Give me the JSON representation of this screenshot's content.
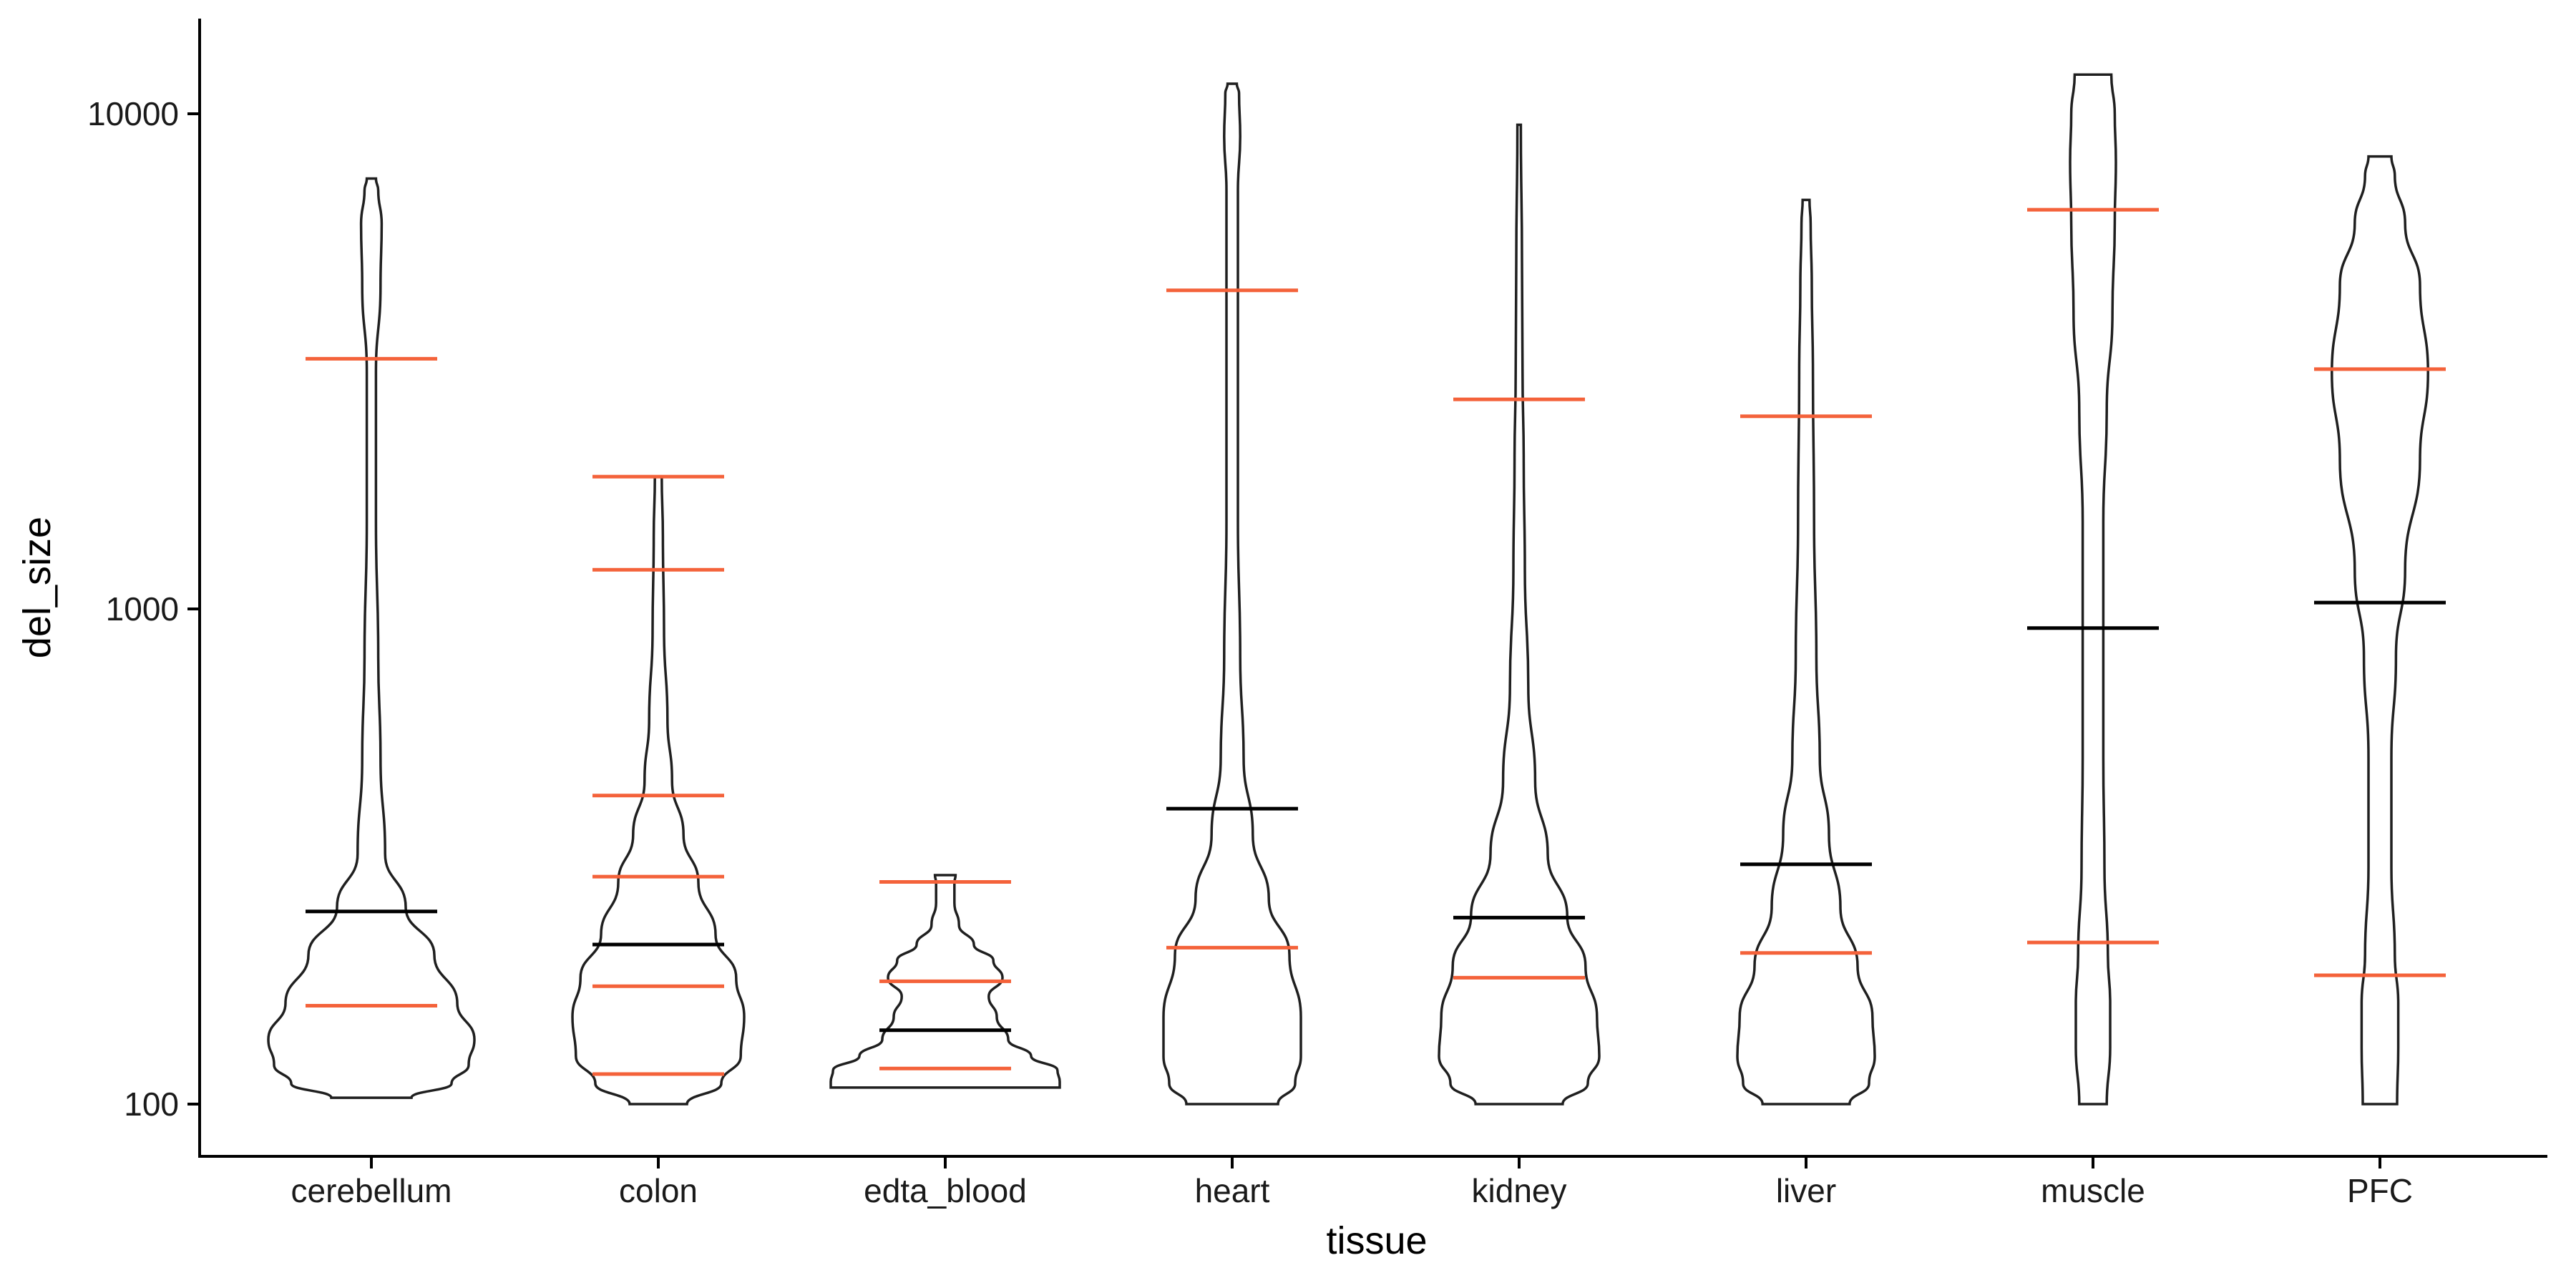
{
  "chart_data": {
    "type": "violin",
    "xlabel": "tissue",
    "ylabel": "del_size",
    "y_scale": "log10",
    "ylim": [
      85,
      15000
    ],
    "y_ticks": [
      {
        "value": 100,
        "label": "100"
      },
      {
        "value": 1000,
        "label": "1000"
      },
      {
        "value": 10000,
        "label": "10000"
      }
    ],
    "categories": [
      "cerebellum",
      "colon",
      "edta_blood",
      "heart",
      "kidney",
      "liver",
      "muscle",
      "PFC"
    ],
    "colors": {
      "violin_outline": "#1f1f1f",
      "median": "#000000",
      "quantile": "#f4623a"
    },
    "series": [
      {
        "category": "cerebellum",
        "min": 103,
        "max": 7400,
        "median": 245,
        "quantiles": [
          158,
          3200
        ],
        "profile": [
          [
            103,
            0.35
          ],
          [
            110,
            0.7
          ],
          [
            120,
            0.85
          ],
          [
            135,
            0.9
          ],
          [
            160,
            0.75
          ],
          [
            200,
            0.55
          ],
          [
            250,
            0.3
          ],
          [
            320,
            0.12
          ],
          [
            500,
            0.08
          ],
          [
            800,
            0.06
          ],
          [
            1500,
            0.04
          ],
          [
            3000,
            0.04
          ],
          [
            4500,
            0.08
          ],
          [
            6000,
            0.09
          ],
          [
            7000,
            0.06
          ],
          [
            7400,
            0.04
          ]
        ]
      },
      {
        "category": "colon",
        "min": 100,
        "max": 1850,
        "median": 210,
        "quantiles": [
          115,
          173,
          288,
          420,
          1200,
          1850
        ],
        "profile": [
          [
            100,
            0.25
          ],
          [
            110,
            0.55
          ],
          [
            125,
            0.72
          ],
          [
            150,
            0.75
          ],
          [
            180,
            0.68
          ],
          [
            220,
            0.5
          ],
          [
            280,
            0.35
          ],
          [
            350,
            0.22
          ],
          [
            450,
            0.12
          ],
          [
            600,
            0.08
          ],
          [
            900,
            0.05
          ],
          [
            1400,
            0.04
          ],
          [
            1850,
            0.03
          ]
        ]
      },
      {
        "category": "edta_blood",
        "min": 108,
        "max": 290,
        "median": 141,
        "quantiles": [
          118,
          177,
          281
        ],
        "profile": [
          [
            108,
            1.0
          ],
          [
            111,
            1.0
          ],
          [
            117,
            0.98
          ],
          [
            125,
            0.75
          ],
          [
            135,
            0.55
          ],
          [
            150,
            0.45
          ],
          [
            165,
            0.38
          ],
          [
            180,
            0.5
          ],
          [
            195,
            0.42
          ],
          [
            210,
            0.25
          ],
          [
            230,
            0.12
          ],
          [
            255,
            0.08
          ],
          [
            280,
            0.08
          ],
          [
            290,
            0.09
          ]
        ]
      },
      {
        "category": "heart",
        "min": 100,
        "max": 11500,
        "median": 395,
        "quantiles": [
          207,
          4400
        ],
        "profile": [
          [
            100,
            0.4
          ],
          [
            110,
            0.55
          ],
          [
            125,
            0.6
          ],
          [
            150,
            0.6
          ],
          [
            200,
            0.5
          ],
          [
            260,
            0.32
          ],
          [
            350,
            0.18
          ],
          [
            500,
            0.1
          ],
          [
            800,
            0.07
          ],
          [
            1500,
            0.05
          ],
          [
            3000,
            0.05
          ],
          [
            5000,
            0.05
          ],
          [
            7000,
            0.05
          ],
          [
            9000,
            0.07
          ],
          [
            11000,
            0.06
          ],
          [
            11500,
            0.04
          ]
        ]
      },
      {
        "category": "kidney",
        "min": 100,
        "max": 9500,
        "median": 238,
        "quantiles": [
          180,
          2650
        ],
        "profile": [
          [
            100,
            0.38
          ],
          [
            110,
            0.6
          ],
          [
            125,
            0.7
          ],
          [
            150,
            0.68
          ],
          [
            190,
            0.58
          ],
          [
            240,
            0.42
          ],
          [
            320,
            0.25
          ],
          [
            450,
            0.14
          ],
          [
            700,
            0.08
          ],
          [
            1200,
            0.05
          ],
          [
            2000,
            0.04
          ],
          [
            3000,
            0.03
          ],
          [
            5000,
            0.025
          ],
          [
            9500,
            0.015
          ]
        ]
      },
      {
        "category": "liver",
        "min": 100,
        "max": 6700,
        "median": 305,
        "quantiles": [
          202,
          2450
        ],
        "profile": [
          [
            100,
            0.38
          ],
          [
            110,
            0.55
          ],
          [
            125,
            0.6
          ],
          [
            150,
            0.58
          ],
          [
            190,
            0.45
          ],
          [
            250,
            0.3
          ],
          [
            350,
            0.2
          ],
          [
            500,
            0.12
          ],
          [
            800,
            0.09
          ],
          [
            1500,
            0.07
          ],
          [
            3000,
            0.06
          ],
          [
            4500,
            0.05
          ],
          [
            6000,
            0.04
          ],
          [
            6700,
            0.03
          ]
        ]
      },
      {
        "category": "muscle",
        "min": 100,
        "max": 12000,
        "median": 915,
        "quantiles": [
          212,
          6400
        ],
        "profile": [
          [
            100,
            0.12
          ],
          [
            130,
            0.15
          ],
          [
            160,
            0.15
          ],
          [
            200,
            0.13
          ],
          [
            300,
            0.1
          ],
          [
            500,
            0.09
          ],
          [
            900,
            0.09
          ],
          [
            1500,
            0.09
          ],
          [
            2500,
            0.12
          ],
          [
            4000,
            0.17
          ],
          [
            6000,
            0.19
          ],
          [
            8000,
            0.2
          ],
          [
            10000,
            0.19
          ],
          [
            12000,
            0.16
          ]
        ]
      },
      {
        "category": "PFC",
        "min": 100,
        "max": 8200,
        "median": 1030,
        "quantiles": [
          182,
          3050
        ],
        "profile": [
          [
            100,
            0.15
          ],
          [
            130,
            0.16
          ],
          [
            160,
            0.16
          ],
          [
            200,
            0.13
          ],
          [
            300,
            0.1
          ],
          [
            500,
            0.1
          ],
          [
            800,
            0.14
          ],
          [
            1200,
            0.22
          ],
          [
            2000,
            0.35
          ],
          [
            3000,
            0.42
          ],
          [
            4500,
            0.35
          ],
          [
            6000,
            0.22
          ],
          [
            7500,
            0.13
          ],
          [
            8200,
            0.1
          ]
        ]
      }
    ]
  }
}
